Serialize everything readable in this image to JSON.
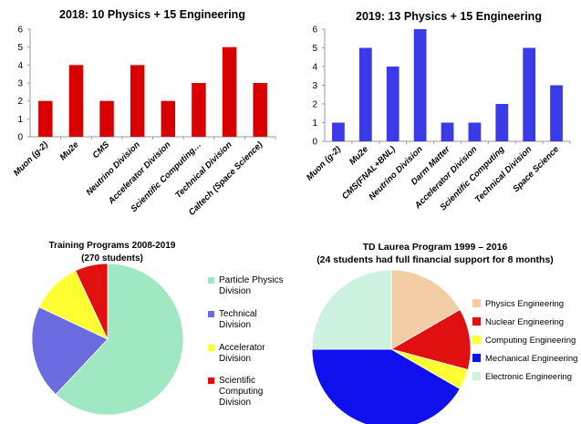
{
  "chart_data": [
    {
      "type": "bar",
      "title": "2018: 10 Physics + 15 Engineering",
      "categories": [
        "Muon (g-2)",
        "Mu2e",
        "CMS",
        "Neutrino Division",
        "Accelerator Division",
        "Scientific Computing…",
        "Technical Division",
        "Caltech (Space Science)"
      ],
      "values": [
        2,
        4,
        2,
        4,
        2,
        3,
        5,
        3
      ],
      "ylim": [
        0,
        6
      ],
      "yticks": [
        "0",
        "1",
        "2",
        "3",
        "4",
        "5",
        "6"
      ],
      "grid": false,
      "colors": {
        "bar": "#d80000"
      }
    },
    {
      "type": "bar",
      "title": "2019: 13 Physics + 15 Engineering",
      "categories": [
        "Muon (g-2)",
        "Mu2e",
        "CMS(FNAL+BNL)",
        "Neutrino Division",
        "Darm Matter",
        "Accelerator Division",
        "Scientific Computing",
        "Technical Division",
        "Space Science"
      ],
      "values": [
        1,
        5,
        4,
        6,
        1,
        1,
        2,
        5,
        3
      ],
      "ylim": [
        0,
        6
      ],
      "yticks": [
        "0",
        "1",
        "2",
        "3",
        "4",
        "5",
        "6"
      ],
      "grid": false,
      "colors": {
        "bar": "#3a3ae8"
      }
    },
    {
      "type": "pie",
      "title": [
        "Training Programs 2008-2019",
        "(270 students)"
      ],
      "legend_position": "right",
      "slices": [
        {
          "label": [
            "Particle Physics",
            "Division"
          ],
          "value": 62,
          "color": "#9fe8c2"
        },
        {
          "label": [
            "Technical",
            "Division"
          ],
          "value": 20,
          "color": "#6b6be0"
        },
        {
          "label": [
            "Accelerator",
            "Division"
          ],
          "value": 11,
          "color": "#ffff33"
        },
        {
          "label": [
            "Scientific",
            "Computing",
            "Division"
          ],
          "value": 7,
          "color": "#e01010"
        }
      ]
    },
    {
      "type": "pie",
      "title": [
        "TD Laurea Program 1999 – 2016",
        "(24 students had full financial support for 8 months)"
      ],
      "legend_position": "right",
      "slices": [
        {
          "label": [
            "Physics Engineering"
          ],
          "value": 4,
          "color": "#f2cda6"
        },
        {
          "label": [
            "Nuclear Engineering"
          ],
          "value": 3,
          "color": "#e01010"
        },
        {
          "label": [
            "Computing Engineering"
          ],
          "value": 1,
          "color": "#ffff33"
        },
        {
          "label": [
            "Mechanical Engineering"
          ],
          "value": 10,
          "color": "#1010ee"
        },
        {
          "label": [
            "Electronic Engineering"
          ],
          "value": 6,
          "color": "#cdf2e0"
        }
      ]
    }
  ]
}
